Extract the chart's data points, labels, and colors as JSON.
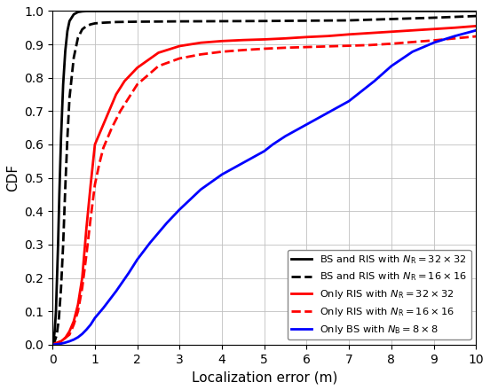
{
  "xlabel": "Localization error (m)",
  "ylabel": "CDF",
  "xlim": [
    0,
    10
  ],
  "ylim": [
    0,
    1
  ],
  "xticks": [
    0,
    1,
    2,
    3,
    4,
    5,
    6,
    7,
    8,
    9,
    10
  ],
  "yticks": [
    0,
    0.1,
    0.2,
    0.3,
    0.4,
    0.5,
    0.6,
    0.7,
    0.8,
    0.9,
    1.0
  ],
  "legend": [
    {
      "label": "BS and RIS with $N_\\mathrm{R} = 32 \\times 32$",
      "color": "black",
      "linestyle": "solid",
      "linewidth": 2.0
    },
    {
      "label": "BS and RIS with $N_\\mathrm{R} = 16 \\times 16$",
      "color": "black",
      "linestyle": "dashed",
      "linewidth": 2.0
    },
    {
      "label": "Only RIS with $N_\\mathrm{R} = 32 \\times 32$",
      "color": "red",
      "linestyle": "solid",
      "linewidth": 2.0
    },
    {
      "label": "Only RIS with $N_\\mathrm{R} = 16 \\times 16$",
      "color": "red",
      "linestyle": "dashed",
      "linewidth": 2.0
    },
    {
      "label": "Only BS with $N_\\mathrm{B} = 8 \\times 8$",
      "color": "blue",
      "linestyle": "solid",
      "linewidth": 2.0
    }
  ],
  "background_color": "#ffffff",
  "grid_color": "#c0c0c0",
  "curves": {
    "black_solid": {
      "x": [
        0,
        0.02,
        0.05,
        0.08,
        0.1,
        0.13,
        0.16,
        0.2,
        0.25,
        0.3,
        0.35,
        0.4,
        0.5,
        0.6,
        0.7,
        0.8,
        1.0,
        1.5,
        2.0,
        5.0,
        10.0
      ],
      "y": [
        0,
        0.01,
        0.04,
        0.1,
        0.18,
        0.3,
        0.45,
        0.62,
        0.78,
        0.88,
        0.94,
        0.97,
        0.99,
        0.997,
        0.999,
        1.0,
        1.0,
        1.0,
        1.0,
        1.0,
        1.0
      ]
    },
    "black_dashed": {
      "x": [
        0,
        0.05,
        0.1,
        0.15,
        0.2,
        0.25,
        0.3,
        0.35,
        0.4,
        0.5,
        0.6,
        0.7,
        0.8,
        0.9,
        1.0,
        1.2,
        1.5,
        2.0,
        3.0,
        5.0,
        7.0,
        9.0,
        10.0
      ],
      "y": [
        0,
        0.01,
        0.03,
        0.08,
        0.17,
        0.3,
        0.47,
        0.62,
        0.74,
        0.86,
        0.92,
        0.945,
        0.955,
        0.96,
        0.963,
        0.965,
        0.967,
        0.968,
        0.969,
        0.97,
        0.972,
        0.98,
        0.985
      ]
    },
    "red_solid": {
      "x": [
        0,
        0.1,
        0.2,
        0.3,
        0.4,
        0.5,
        0.6,
        0.7,
        0.8,
        0.9,
        1.0,
        1.1,
        1.2,
        1.3,
        1.5,
        1.7,
        2.0,
        2.5,
        3.0,
        3.5,
        4.0,
        4.5,
        5.0,
        5.5,
        6.0,
        6.5,
        7.0,
        7.5,
        8.0,
        8.5,
        9.0,
        9.5,
        10.0
      ],
      "y": [
        0,
        0.005,
        0.01,
        0.02,
        0.04,
        0.07,
        0.12,
        0.2,
        0.35,
        0.48,
        0.6,
        0.63,
        0.66,
        0.69,
        0.75,
        0.79,
        0.83,
        0.875,
        0.895,
        0.905,
        0.91,
        0.913,
        0.915,
        0.918,
        0.922,
        0.925,
        0.93,
        0.934,
        0.938,
        0.942,
        0.946,
        0.95,
        0.955
      ]
    },
    "red_dashed": {
      "x": [
        0,
        0.1,
        0.2,
        0.3,
        0.4,
        0.5,
        0.6,
        0.7,
        0.8,
        0.9,
        1.0,
        1.1,
        1.2,
        1.4,
        1.6,
        1.8,
        2.0,
        2.5,
        3.0,
        3.5,
        4.0,
        4.5,
        5.0,
        5.5,
        6.0,
        6.5,
        7.0,
        7.5,
        8.0,
        8.5,
        9.0,
        9.5,
        10.0
      ],
      "y": [
        0,
        0.005,
        0.01,
        0.02,
        0.03,
        0.06,
        0.1,
        0.17,
        0.27,
        0.38,
        0.48,
        0.54,
        0.59,
        0.65,
        0.7,
        0.74,
        0.78,
        0.835,
        0.858,
        0.87,
        0.878,
        0.883,
        0.887,
        0.89,
        0.892,
        0.894,
        0.896,
        0.898,
        0.902,
        0.907,
        0.912,
        0.918,
        0.924
      ]
    },
    "blue_solid": {
      "x": [
        0,
        0.1,
        0.2,
        0.3,
        0.4,
        0.5,
        0.6,
        0.7,
        0.8,
        0.9,
        1.0,
        1.2,
        1.5,
        1.8,
        2.0,
        2.3,
        2.7,
        3.0,
        3.5,
        4.0,
        4.5,
        5.0,
        5.2,
        5.5,
        6.0,
        6.5,
        7.0,
        7.3,
        7.6,
        8.0,
        8.5,
        9.0,
        9.5,
        10.0
      ],
      "y": [
        0,
        0.001,
        0.003,
        0.006,
        0.01,
        0.015,
        0.022,
        0.032,
        0.045,
        0.06,
        0.08,
        0.11,
        0.16,
        0.215,
        0.255,
        0.305,
        0.365,
        0.405,
        0.465,
        0.51,
        0.545,
        0.58,
        0.6,
        0.625,
        0.66,
        0.695,
        0.73,
        0.76,
        0.79,
        0.835,
        0.878,
        0.905,
        0.925,
        0.942
      ]
    }
  }
}
